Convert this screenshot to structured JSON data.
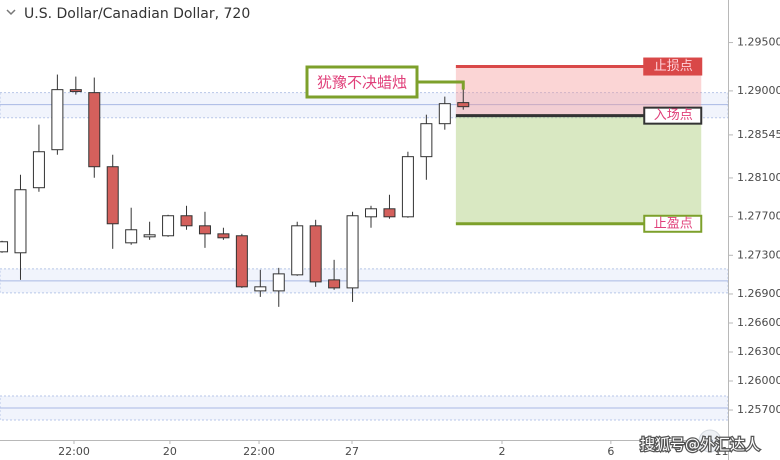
{
  "chart_data": {
    "type": "candlestick",
    "title": "U.S. Dollar/Canadian Dollar, 720",
    "x": [
      0,
      1,
      2,
      3,
      4,
      5,
      6,
      7,
      8,
      9,
      10,
      11,
      12,
      13,
      14,
      15,
      16,
      17,
      18,
      19,
      20,
      21,
      22,
      23,
      24,
      25
    ],
    "open": [
      1.27336,
      1.27326,
      1.27999,
      1.28392,
      1.29013,
      1.28982,
      1.28216,
      1.27429,
      1.27491,
      1.27502,
      1.27709,
      1.27605,
      1.27522,
      1.27502,
      1.26932,
      1.26932,
      1.27098,
      1.27605,
      1.27046,
      1.26963,
      1.27698,
      1.27781,
      1.27698,
      1.2832,
      1.28661,
      1.28879
    ],
    "high": [
      1.2745,
      1.28133,
      1.28651,
      1.29169,
      1.29148,
      1.29138,
      1.2834,
      1.27792,
      1.27647,
      1.27719,
      1.27812,
      1.2775,
      1.27585,
      1.27522,
      1.2715,
      1.2717,
      1.27647,
      1.27667,
      1.27253,
      1.2775,
      1.27812,
      1.27926,
      1.28371,
      1.28754,
      1.28941,
      1.29096
    ],
    "low": [
      1.27326,
      1.27046,
      1.27957,
      1.2834,
      1.28962,
      1.28102,
      1.27367,
      1.27409,
      1.2746,
      1.27491,
      1.27564,
      1.27377,
      1.2746,
      1.26963,
      1.2687,
      1.26767,
      1.27088,
      1.26974,
      1.26943,
      1.26818,
      1.27585,
      1.27678,
      1.27688,
      1.28081,
      1.28599,
      1.28806
    ],
    "close": [
      1.2744,
      1.27978,
      1.28371,
      1.29013,
      1.28993,
      1.28216,
      1.27626,
      1.27564,
      1.27512,
      1.27709,
      1.27605,
      1.27522,
      1.27481,
      1.26974,
      1.26974,
      1.27108,
      1.27605,
      1.27025,
      1.26963,
      1.27709,
      1.27781,
      1.27698,
      1.2832,
      1.28661,
      1.28868,
      1.28837
    ],
    "up_color": "#ffffff",
    "down_color": "#d4605c",
    "ylim": [
      1.2539,
      1.2994
    ],
    "yticks": [
      {
        "value": 1.295,
        "label": "1.29500"
      },
      {
        "value": 1.29,
        "label": "1.29000"
      },
      1.28545,
      {
        "value": 1.281,
        "label": "1.28100"
      },
      {
        "value": 1.277,
        "label": "1.27700"
      },
      {
        "value": 1.273,
        "label": "1.27300"
      },
      {
        "value": 1.269,
        "label": "1.26900"
      },
      {
        "value": 1.266,
        "label": "1.26600"
      },
      {
        "value": 1.263,
        "label": "1.26300"
      },
      {
        "value": 1.26,
        "label": "1.26000"
      },
      {
        "value": 1.257,
        "label": "1.25700"
      }
    ],
    "xlim": [
      -0.11,
      39.35
    ],
    "xticks": [
      {
        "value": 3.9,
        "label": "22:00"
      },
      {
        "value": 9.1,
        "label": "20"
      },
      {
        "value": 13.93,
        "label": "22:00"
      },
      {
        "value": 18.97,
        "label": "27"
      },
      {
        "value": 27.1,
        "label": "2"
      },
      {
        "value": 33.0,
        "label": "6"
      },
      {
        "value": 39.0,
        "label": "11"
      }
    ],
    "zones": [
      {
        "low": 1.28723,
        "level": 1.28858,
        "high": 1.28982
      },
      {
        "low": 1.26912,
        "level": 1.27036,
        "high": 1.2716
      },
      {
        "low": 1.25597,
        "level": 1.25721,
        "high": 1.25845
      }
    ],
    "position": {
      "x_start": 24.6,
      "x_end": 37.9,
      "stop": 1.29252,
      "entry": 1.28744,
      "target": 1.27626,
      "stop_label": "止损点",
      "entry_label": "入场点",
      "target_label": "止盈点"
    },
    "annotation": {
      "text": "犹豫不决蜡烛"
    },
    "watermark": "搜狐号@外汇达人"
  }
}
